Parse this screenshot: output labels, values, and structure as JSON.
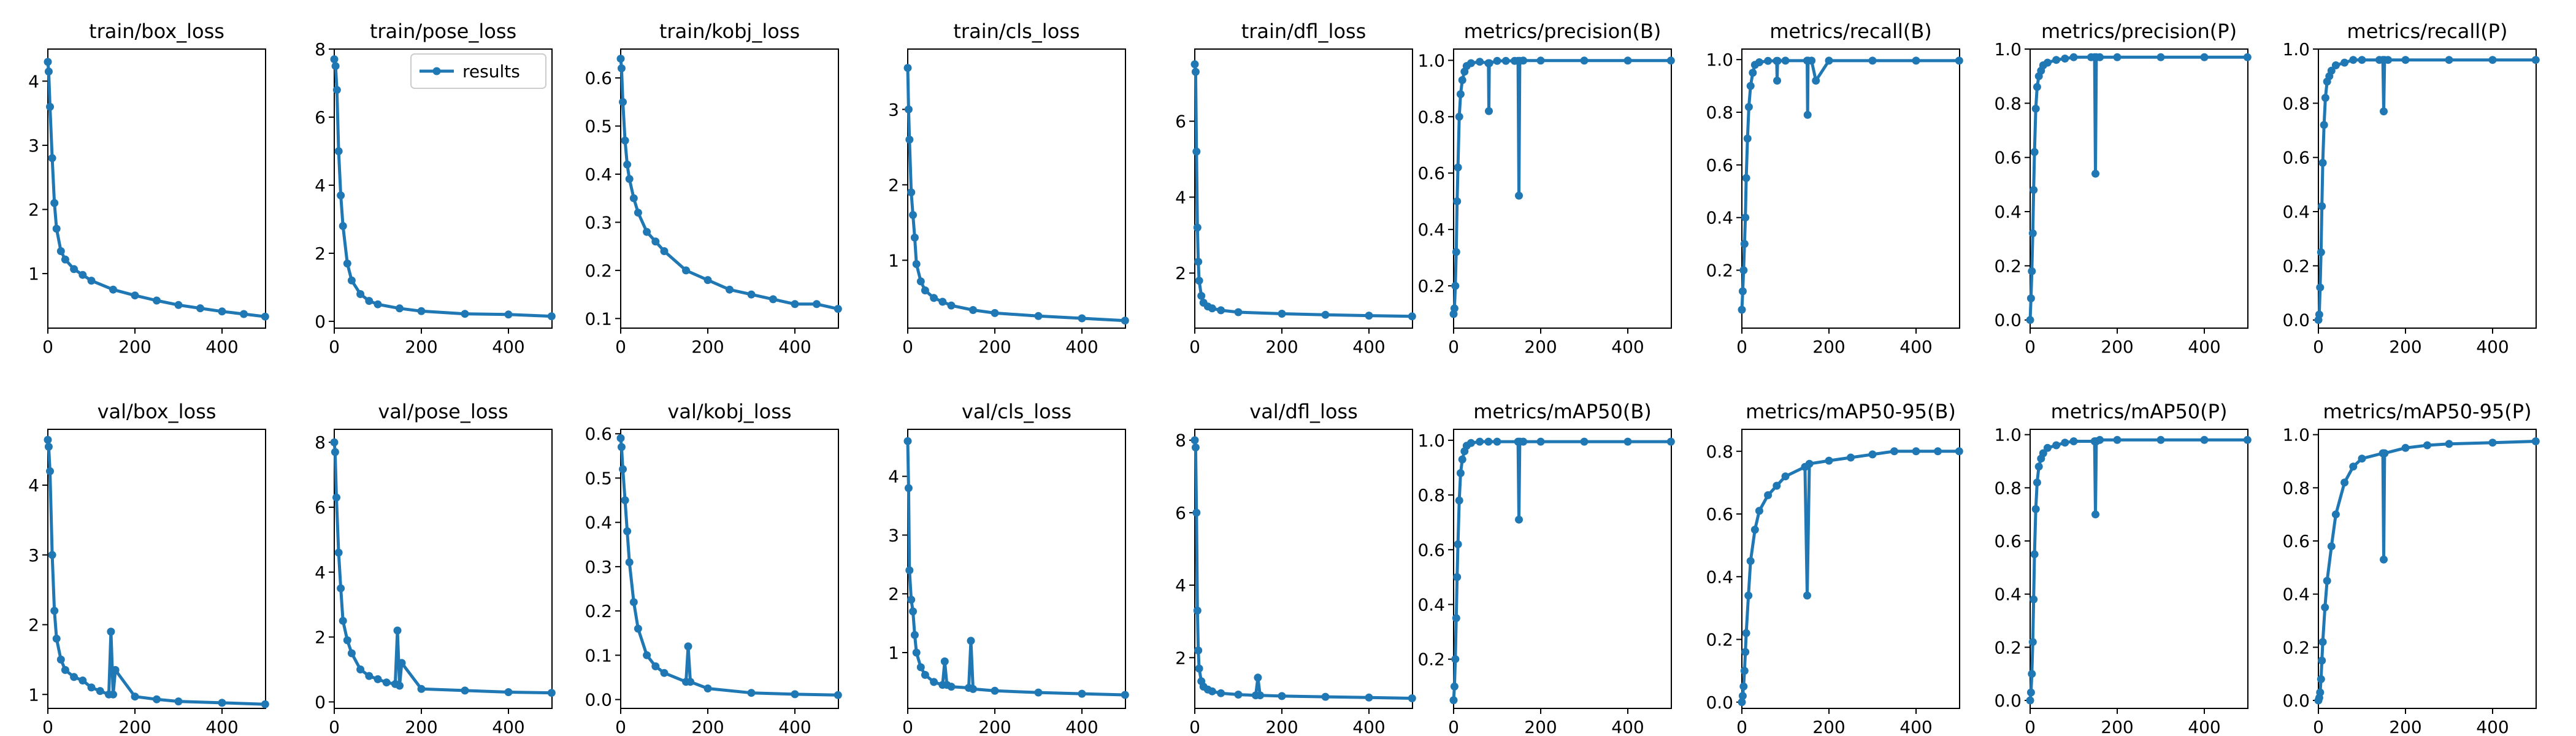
{
  "legend": {
    "label": "results"
  },
  "colors": {
    "series": "#1f77b4",
    "frame": "#000000",
    "background": "#ffffff"
  },
  "chart_data": [
    {
      "type": "line",
      "title": "train/box_loss",
      "xlim": [
        0,
        500
      ],
      "ylim": [
        0.15,
        4.5
      ],
      "xticks": [
        0,
        200,
        400
      ],
      "yticks": [
        1,
        2,
        3,
        4
      ],
      "x": [
        0,
        2,
        5,
        10,
        15,
        20,
        30,
        40,
        60,
        80,
        100,
        150,
        200,
        250,
        300,
        350,
        400,
        450,
        499
      ],
      "y": [
        4.3,
        4.15,
        3.6,
        2.8,
        2.1,
        1.7,
        1.35,
        1.22,
        1.07,
        0.98,
        0.89,
        0.75,
        0.66,
        0.58,
        0.51,
        0.46,
        0.41,
        0.37,
        0.33
      ]
    },
    {
      "type": "line",
      "title": "train/pose_loss",
      "xlim": [
        0,
        500
      ],
      "ylim": [
        -0.2,
        8.0
      ],
      "xticks": [
        0,
        200,
        400
      ],
      "yticks": [
        0,
        2,
        4,
        6,
        8
      ],
      "x": [
        0,
        3,
        6,
        10,
        15,
        20,
        30,
        40,
        60,
        80,
        100,
        150,
        200,
        300,
        400,
        499
      ],
      "y": [
        7.7,
        7.5,
        6.8,
        5.0,
        3.7,
        2.8,
        1.7,
        1.2,
        0.8,
        0.6,
        0.5,
        0.38,
        0.3,
        0.22,
        0.2,
        0.15
      ]
    },
    {
      "type": "line",
      "title": "train/kobj_loss",
      "xlim": [
        0,
        500
      ],
      "ylim": [
        0.08,
        0.66
      ],
      "xticks": [
        0,
        200,
        400
      ],
      "yticks": [
        0.1,
        0.2,
        0.3,
        0.4,
        0.5,
        0.6
      ],
      "x": [
        0,
        2,
        5,
        10,
        15,
        20,
        30,
        40,
        60,
        80,
        100,
        150,
        200,
        250,
        300,
        350,
        400,
        450,
        499
      ],
      "y": [
        0.64,
        0.62,
        0.55,
        0.47,
        0.42,
        0.39,
        0.35,
        0.32,
        0.28,
        0.26,
        0.24,
        0.2,
        0.18,
        0.16,
        0.15,
        0.14,
        0.13,
        0.13,
        0.12
      ]
    },
    {
      "type": "line",
      "title": "train/cls_loss",
      "xlim": [
        0,
        500
      ],
      "ylim": [
        0.1,
        3.8
      ],
      "xticks": [
        0,
        200,
        400
      ],
      "yticks": [
        1,
        2,
        3
      ],
      "x": [
        0,
        2,
        4,
        8,
        12,
        16,
        20,
        30,
        40,
        60,
        80,
        100,
        150,
        200,
        300,
        400,
        499
      ],
      "y": [
        3.55,
        3.0,
        2.6,
        1.9,
        1.6,
        1.3,
        0.95,
        0.72,
        0.6,
        0.5,
        0.45,
        0.4,
        0.34,
        0.3,
        0.26,
        0.23,
        0.2
      ]
    },
    {
      "type": "line",
      "title": "train/dfl_loss",
      "xlim": [
        0,
        500
      ],
      "ylim": [
        0.55,
        7.9
      ],
      "xticks": [
        0,
        200,
        400
      ],
      "yticks": [
        2,
        4,
        6
      ],
      "x": [
        0,
        2,
        4,
        6,
        8,
        10,
        15,
        20,
        30,
        40,
        60,
        100,
        200,
        300,
        400,
        499
      ],
      "y": [
        7.5,
        7.3,
        5.2,
        3.2,
        2.3,
        1.8,
        1.4,
        1.22,
        1.12,
        1.07,
        1.02,
        0.97,
        0.93,
        0.9,
        0.88,
        0.86
      ]
    },
    {
      "type": "line",
      "title": "metrics/precision(B)",
      "xlim": [
        0,
        500
      ],
      "ylim": [
        0.05,
        1.04
      ],
      "xticks": [
        0,
        200,
        400
      ],
      "yticks": [
        0.2,
        0.4,
        0.6,
        0.8,
        1.0
      ],
      "x": [
        0,
        2,
        4,
        6,
        8,
        10,
        13,
        16,
        20,
        25,
        30,
        40,
        60,
        80,
        81,
        82,
        100,
        120,
        140,
        148,
        150,
        152,
        160,
        200,
        300,
        400,
        499
      ],
      "y": [
        0.1,
        0.12,
        0.2,
        0.32,
        0.5,
        0.62,
        0.8,
        0.88,
        0.93,
        0.96,
        0.98,
        0.99,
        0.995,
        0.99,
        0.82,
        0.99,
        0.998,
        0.998,
        0.998,
        0.998,
        0.52,
        0.998,
        0.999,
        0.999,
        0.999,
        0.999,
        0.999
      ]
    },
    {
      "type": "line",
      "title": "metrics/recall(B)",
      "xlim": [
        0,
        500
      ],
      "ylim": [
        -0.02,
        1.04
      ],
      "xticks": [
        0,
        200,
        400
      ],
      "yticks": [
        0.2,
        0.4,
        0.6,
        0.8,
        1.0
      ],
      "x": [
        0,
        2,
        4,
        6,
        8,
        10,
        13,
        16,
        20,
        25,
        30,
        40,
        60,
        80,
        81,
        82,
        100,
        150,
        151,
        152,
        160,
        170,
        200,
        300,
        400,
        499
      ],
      "y": [
        0.05,
        0.12,
        0.2,
        0.3,
        0.4,
        0.55,
        0.7,
        0.82,
        0.9,
        0.95,
        0.98,
        0.99,
        0.995,
        0.995,
        0.92,
        0.995,
        0.996,
        0.996,
        0.79,
        0.996,
        0.996,
        0.92,
        0.996,
        0.996,
        0.996,
        0.996
      ]
    },
    {
      "type": "line",
      "title": "metrics/precision(P)",
      "xlim": [
        0,
        500
      ],
      "ylim": [
        -0.03,
        1.0
      ],
      "xticks": [
        0,
        200,
        400
      ],
      "yticks": [
        0.0,
        0.2,
        0.4,
        0.6,
        0.8,
        1.0
      ],
      "x": [
        0,
        2,
        4,
        6,
        8,
        10,
        13,
        16,
        20,
        25,
        30,
        40,
        60,
        80,
        100,
        140,
        148,
        150,
        152,
        160,
        200,
        300,
        400,
        499
      ],
      "y": [
        0.0,
        0.08,
        0.18,
        0.32,
        0.48,
        0.62,
        0.78,
        0.86,
        0.9,
        0.92,
        0.94,
        0.95,
        0.96,
        0.965,
        0.97,
        0.97,
        0.97,
        0.54,
        0.97,
        0.97,
        0.97,
        0.97,
        0.97,
        0.97
      ]
    },
    {
      "type": "line",
      "title": "metrics/recall(P)",
      "xlim": [
        0,
        500
      ],
      "ylim": [
        -0.03,
        1.0
      ],
      "xticks": [
        0,
        200,
        400
      ],
      "yticks": [
        0.0,
        0.2,
        0.4,
        0.6,
        0.8,
        1.0
      ],
      "x": [
        0,
        2,
        4,
        6,
        8,
        10,
        13,
        16,
        20,
        25,
        30,
        40,
        60,
        80,
        100,
        140,
        148,
        150,
        152,
        160,
        200,
        300,
        400,
        499
      ],
      "y": [
        0.0,
        0.02,
        0.12,
        0.25,
        0.42,
        0.58,
        0.72,
        0.82,
        0.88,
        0.9,
        0.92,
        0.94,
        0.95,
        0.96,
        0.96,
        0.96,
        0.96,
        0.77,
        0.96,
        0.96,
        0.96,
        0.96,
        0.96,
        0.96
      ]
    },
    {
      "type": "line",
      "title": "val/box_loss",
      "xlim": [
        0,
        500
      ],
      "ylim": [
        0.8,
        4.8
      ],
      "xticks": [
        0,
        200,
        400
      ],
      "yticks": [
        1,
        2,
        3,
        4
      ],
      "x": [
        0,
        2,
        5,
        10,
        15,
        20,
        30,
        40,
        60,
        80,
        100,
        120,
        140,
        145,
        150,
        155,
        200,
        250,
        300,
        400,
        499
      ],
      "y": [
        4.65,
        4.55,
        4.2,
        3.0,
        2.2,
        1.8,
        1.5,
        1.35,
        1.25,
        1.2,
        1.1,
        1.05,
        1.0,
        1.9,
        1.0,
        1.35,
        0.97,
        0.93,
        0.9,
        0.88,
        0.86
      ]
    },
    {
      "type": "line",
      "title": "val/pose_loss",
      "xlim": [
        0,
        500
      ],
      "ylim": [
        -0.2,
        8.4
      ],
      "xticks": [
        0,
        200,
        400
      ],
      "yticks": [
        0,
        2,
        4,
        6,
        8
      ],
      "x": [
        0,
        2,
        5,
        10,
        15,
        20,
        30,
        40,
        60,
        80,
        100,
        120,
        140,
        145,
        150,
        155,
        200,
        300,
        400,
        499
      ],
      "y": [
        8.0,
        7.7,
        6.3,
        4.6,
        3.5,
        2.5,
        1.9,
        1.5,
        1.0,
        0.8,
        0.7,
        0.6,
        0.55,
        2.2,
        0.5,
        1.2,
        0.4,
        0.35,
        0.3,
        0.28
      ]
    },
    {
      "type": "line",
      "title": "val/kobj_loss",
      "xlim": [
        0,
        500
      ],
      "ylim": [
        -0.02,
        0.61
      ],
      "xticks": [
        0,
        200,
        400
      ],
      "yticks": [
        0.0,
        0.1,
        0.2,
        0.3,
        0.4,
        0.5,
        0.6
      ],
      "x": [
        0,
        2,
        5,
        10,
        15,
        20,
        30,
        40,
        60,
        80,
        100,
        150,
        155,
        160,
        200,
        300,
        400,
        499
      ],
      "y": [
        0.59,
        0.57,
        0.52,
        0.45,
        0.38,
        0.31,
        0.22,
        0.16,
        0.1,
        0.075,
        0.06,
        0.04,
        0.12,
        0.04,
        0.025,
        0.015,
        0.012,
        0.01
      ]
    },
    {
      "type": "line",
      "title": "val/cls_loss",
      "xlim": [
        0,
        500
      ],
      "ylim": [
        0.05,
        4.8
      ],
      "xticks": [
        0,
        200,
        400
      ],
      "yticks": [
        1,
        2,
        3,
        4
      ],
      "x": [
        0,
        2,
        4,
        8,
        12,
        16,
        20,
        30,
        40,
        60,
        80,
        85,
        90,
        100,
        140,
        145,
        150,
        200,
        300,
        400,
        499
      ],
      "y": [
        4.6,
        3.8,
        2.4,
        1.9,
        1.7,
        1.3,
        1.0,
        0.75,
        0.62,
        0.5,
        0.45,
        0.85,
        0.45,
        0.42,
        0.4,
        1.2,
        0.38,
        0.35,
        0.32,
        0.3,
        0.28
      ]
    },
    {
      "type": "line",
      "title": "val/dfl_loss",
      "xlim": [
        0,
        500
      ],
      "ylim": [
        0.6,
        8.3
      ],
      "xticks": [
        0,
        200,
        400
      ],
      "yticks": [
        2,
        4,
        6,
        8
      ],
      "x": [
        0,
        2,
        4,
        6,
        8,
        10,
        15,
        20,
        30,
        40,
        60,
        100,
        140,
        145,
        150,
        200,
        300,
        400,
        499
      ],
      "y": [
        8.0,
        7.8,
        6.0,
        3.3,
        2.2,
        1.7,
        1.35,
        1.2,
        1.12,
        1.07,
        1.02,
        0.98,
        0.96,
        1.45,
        0.96,
        0.94,
        0.92,
        0.9,
        0.88
      ]
    },
    {
      "type": "line",
      "title": "metrics/mAP50(B)",
      "xlim": [
        0,
        500
      ],
      "ylim": [
        0.02,
        1.04
      ],
      "xticks": [
        0,
        200,
        400
      ],
      "yticks": [
        0.2,
        0.4,
        0.6,
        0.8,
        1.0
      ],
      "x": [
        0,
        2,
        4,
        6,
        8,
        10,
        13,
        16,
        20,
        25,
        30,
        40,
        60,
        80,
        100,
        148,
        150,
        152,
        160,
        200,
        300,
        400,
        499
      ],
      "y": [
        0.05,
        0.1,
        0.2,
        0.35,
        0.5,
        0.62,
        0.78,
        0.88,
        0.93,
        0.96,
        0.98,
        0.99,
        0.995,
        0.995,
        0.995,
        0.995,
        0.71,
        0.995,
        0.995,
        0.995,
        0.995,
        0.995,
        0.995
      ]
    },
    {
      "type": "line",
      "title": "metrics/mAP50-95(B)",
      "xlim": [
        0,
        500
      ],
      "ylim": [
        -0.02,
        0.87
      ],
      "xticks": [
        0,
        200,
        400
      ],
      "yticks": [
        0.0,
        0.2,
        0.4,
        0.6,
        0.8
      ],
      "x": [
        0,
        2,
        4,
        6,
        8,
        10,
        15,
        20,
        30,
        40,
        60,
        80,
        100,
        145,
        150,
        155,
        200,
        250,
        300,
        350,
        400,
        450,
        499
      ],
      "y": [
        0.0,
        0.02,
        0.05,
        0.1,
        0.16,
        0.22,
        0.34,
        0.45,
        0.55,
        0.61,
        0.66,
        0.69,
        0.72,
        0.75,
        0.34,
        0.76,
        0.77,
        0.78,
        0.79,
        0.8,
        0.8,
        0.8,
        0.8
      ]
    },
    {
      "type": "line",
      "title": "metrics/mAP50(P)",
      "xlim": [
        0,
        500
      ],
      "ylim": [
        -0.03,
        1.02
      ],
      "xticks": [
        0,
        200,
        400
      ],
      "yticks": [
        0.0,
        0.2,
        0.4,
        0.6,
        0.8,
        1.0
      ],
      "x": [
        0,
        2,
        4,
        6,
        8,
        10,
        13,
        16,
        20,
        25,
        30,
        40,
        60,
        80,
        100,
        148,
        150,
        152,
        160,
        200,
        300,
        400,
        499
      ],
      "y": [
        0.0,
        0.03,
        0.1,
        0.22,
        0.38,
        0.55,
        0.72,
        0.82,
        0.88,
        0.91,
        0.93,
        0.95,
        0.96,
        0.97,
        0.975,
        0.975,
        0.7,
        0.975,
        0.98,
        0.98,
        0.98,
        0.98,
        0.98
      ]
    },
    {
      "type": "line",
      "title": "metrics/mAP50-95(P)",
      "xlim": [
        0,
        500
      ],
      "ylim": [
        -0.03,
        1.02
      ],
      "xticks": [
        0,
        200,
        400
      ],
      "yticks": [
        0.0,
        0.2,
        0.4,
        0.6,
        0.8,
        1.0
      ],
      "x": [
        0,
        2,
        4,
        6,
        8,
        10,
        15,
        20,
        30,
        40,
        60,
        80,
        100,
        148,
        150,
        152,
        200,
        250,
        300,
        400,
        499
      ],
      "y": [
        0.0,
        0.01,
        0.03,
        0.08,
        0.15,
        0.22,
        0.35,
        0.45,
        0.58,
        0.7,
        0.82,
        0.88,
        0.91,
        0.93,
        0.53,
        0.93,
        0.95,
        0.96,
        0.965,
        0.97,
        0.975
      ]
    }
  ]
}
